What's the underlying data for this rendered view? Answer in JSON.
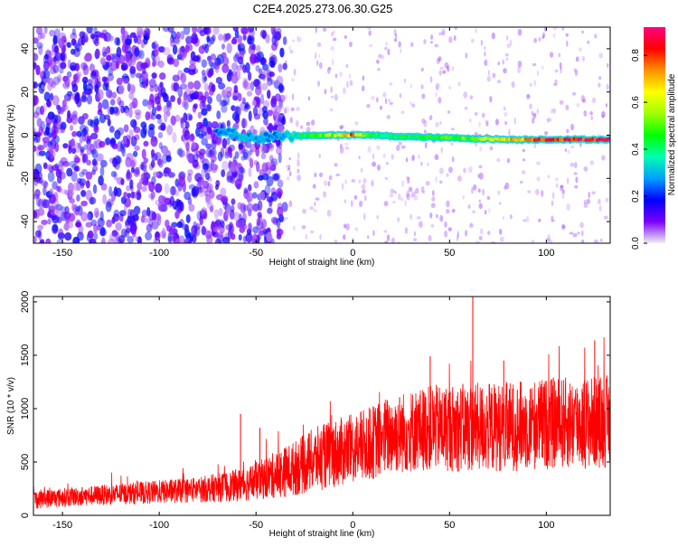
{
  "title": "C2E4.2025.273.06.30.G25",
  "chart_data": [
    {
      "type": "heatmap",
      "xlabel": "Height of straight line (km)",
      "ylabel": "Frequency (Hz)",
      "xlim": [
        -165,
        133
      ],
      "ylim": [
        -50,
        50
      ],
      "x_ticks": [
        -150,
        -100,
        -50,
        0,
        50,
        100
      ],
      "y_ticks": [
        -40,
        -20,
        0,
        20,
        40
      ],
      "grid": false,
      "colorbar": {
        "label": "Normalized spectral amplitude",
        "range": [
          0.0,
          0.92
        ],
        "ticks": [
          0.0,
          0.2,
          0.4,
          0.6,
          0.8
        ],
        "colors": [
          "#f0f0f0",
          "#7b00ff",
          "#0000ff",
          "#00a0ff",
          "#00ffb0",
          "#00ff00",
          "#a0ff00",
          "#ffff00",
          "#ff9000",
          "#ff0000",
          "#ff0080"
        ]
      },
      "noise_region_x": [
        -165,
        -35
      ],
      "signal_band": [
        {
          "x": -70,
          "freq": 1.5,
          "amp": 0.25
        },
        {
          "x": -60,
          "freq": 0.5,
          "amp": 0.3
        },
        {
          "x": -50,
          "freq": -2.0,
          "amp": 0.3
        },
        {
          "x": -40,
          "freq": 0.0,
          "amp": 0.25
        },
        {
          "x": -30,
          "freq": -0.5,
          "amp": 0.4
        },
        {
          "x": -20,
          "freq": 0.0,
          "amp": 0.5
        },
        {
          "x": -10,
          "freq": 0.0,
          "amp": 0.6
        },
        {
          "x": 0,
          "freq": 0.0,
          "amp": 0.8
        },
        {
          "x": 10,
          "freq": 0.0,
          "amp": 0.45
        },
        {
          "x": 20,
          "freq": -0.5,
          "amp": 0.45
        },
        {
          "x": 40,
          "freq": -1.0,
          "amp": 0.5
        },
        {
          "x": 60,
          "freq": -1.5,
          "amp": 0.55
        },
        {
          "x": 80,
          "freq": -2.0,
          "amp": 0.7
        },
        {
          "x": 100,
          "freq": -2.0,
          "amp": 0.9
        },
        {
          "x": 133,
          "freq": -2.0,
          "amp": 0.92
        }
      ]
    },
    {
      "type": "line",
      "xlabel": "Height of straight line (km)",
      "ylabel": "SNR (10 * v/v)",
      "xlim": [
        -165,
        133
      ],
      "ylim": [
        0,
        2050
      ],
      "x_ticks": [
        -150,
        -100,
        -50,
        0,
        50,
        100
      ],
      "y_ticks": [
        0,
        500,
        1000,
        1500,
        2000
      ],
      "grid": false,
      "series_color": "#ff0000",
      "trend": {
        "x": [
          -165,
          -140,
          -120,
          -100,
          -80,
          -60,
          -50,
          -40,
          -30,
          -20,
          -10,
          0,
          10,
          20,
          40,
          60,
          80,
          100,
          133
        ],
        "mean": [
          150,
          180,
          200,
          220,
          240,
          280,
          320,
          380,
          440,
          520,
          580,
          620,
          680,
          760,
          820,
          820,
          830,
          860,
          880
        ],
        "spread": [
          90,
          90,
          100,
          110,
          120,
          150,
          180,
          220,
          260,
          300,
          320,
          330,
          350,
          380,
          400,
          420,
          420,
          430,
          440
        ]
      },
      "peaks": [
        {
          "x": 62,
          "y": 2050
        },
        {
          "x": -58,
          "y": 950
        },
        {
          "x": -48,
          "y": 820
        },
        {
          "x": 78,
          "y": 1450
        },
        {
          "x": 125,
          "y": 1640
        },
        {
          "x": 40,
          "y": 1490
        }
      ]
    }
  ]
}
